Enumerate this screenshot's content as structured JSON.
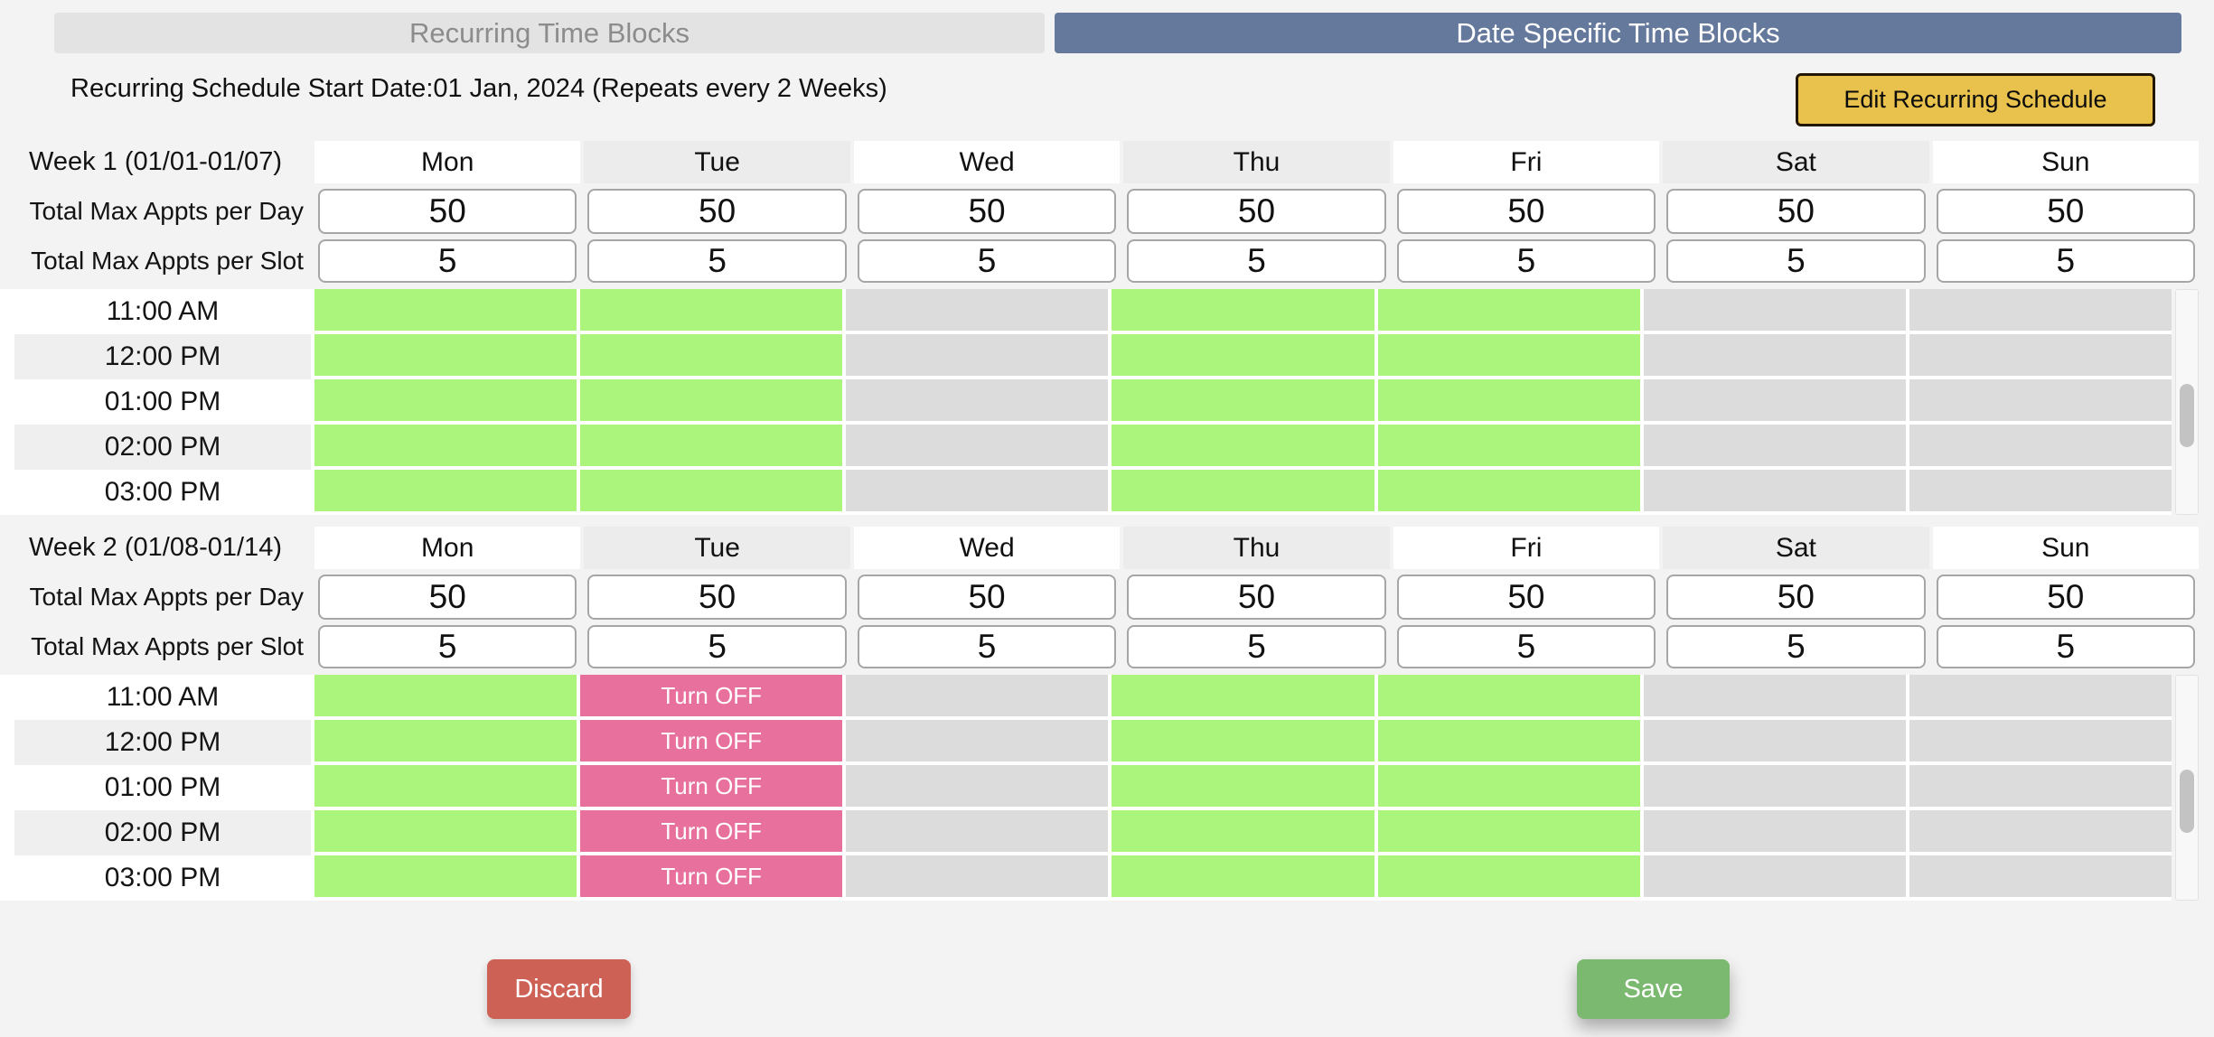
{
  "tabs": {
    "recurring_label": "Recurring Time Blocks",
    "date_specific_label": "Date Specific Time Blocks"
  },
  "header": {
    "start_date_text": "Recurring Schedule Start Date:01 Jan, 2024 (Repeats every 2 Weeks)",
    "edit_button_label": "Edit Recurring Schedule"
  },
  "day_headers": [
    "Mon",
    "Tue",
    "Wed",
    "Thu",
    "Fri",
    "Sat",
    "Sun"
  ],
  "row_labels": {
    "max_per_day": "Total Max Appts per Day",
    "max_per_slot": "Total Max Appts per Slot"
  },
  "time_slots": [
    "11:00 AM",
    "12:00 PM",
    "01:00 PM",
    "02:00 PM",
    "03:00 PM"
  ],
  "turn_off_label": "Turn OFF",
  "weeks": [
    {
      "label": "Week 1 (01/01-01/07)",
      "max_appts_per_day": [
        "50",
        "50",
        "50",
        "50",
        "50",
        "50",
        "50"
      ],
      "max_appts_per_slot": [
        "5",
        "5",
        "5",
        "5",
        "5",
        "5",
        "5"
      ],
      "day_states": [
        "on",
        "on",
        "off",
        "on",
        "on",
        "off",
        "off"
      ]
    },
    {
      "label": "Week 2 (01/08-01/14)",
      "max_appts_per_day": [
        "50",
        "50",
        "50",
        "50",
        "50",
        "50",
        "50"
      ],
      "max_appts_per_slot": [
        "5",
        "5",
        "5",
        "5",
        "5",
        "5",
        "5"
      ],
      "day_states": [
        "on",
        "turn_off",
        "off",
        "on",
        "on",
        "off",
        "off"
      ]
    }
  ],
  "footer": {
    "discard_label": "Discard",
    "save_label": "Save"
  },
  "colors": {
    "page_bg": "#f3f3f3",
    "tab_inactive_bg": "#e3e3e3",
    "tab_inactive_text": "#8c8c8c",
    "tab_active_bg": "#64799c",
    "edit_button_bg": "#e9c24d",
    "available_cell": "#abf57d",
    "unavailable_cell": "#dcdcdc",
    "turn_off_cell": "#e8709c",
    "discard_button": "#cd6155",
    "save_button": "#7cb970"
  }
}
